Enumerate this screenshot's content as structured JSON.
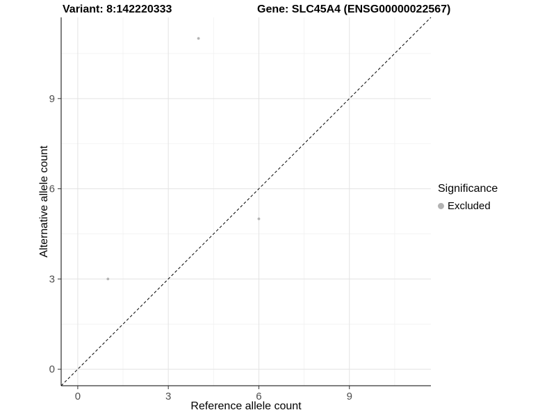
{
  "title": {
    "variant": "Variant: 8:142220333",
    "gene": "Gene: SLC45A4 (ENSG00000022567)"
  },
  "chart_data": {
    "type": "scatter",
    "title": "Variant: 8:142220333   Gene: SLC45A4 (ENSG00000022567)",
    "xlabel": "Reference allele count",
    "ylabel": "Alternative allele count",
    "xlim": [
      -0.55,
      11.7
    ],
    "ylim": [
      -0.55,
      11.7
    ],
    "x_ticks": [
      0,
      3,
      6,
      9
    ],
    "y_ticks": [
      0,
      3,
      6,
      9
    ],
    "x_minor_ticks": [
      1.5,
      4.5,
      7.5,
      10.5
    ],
    "y_minor_ticks": [
      1.5,
      4.5,
      7.5,
      10.5
    ],
    "grid": true,
    "series": [
      {
        "name": "Excluded",
        "color": "#b3b3b3",
        "points": [
          {
            "x": 1,
            "y": 3
          },
          {
            "x": 4,
            "y": 11
          },
          {
            "x": 6,
            "y": 5
          }
        ]
      }
    ],
    "identity_line": {
      "style": "dashed",
      "color": "#000000",
      "from": -0.55,
      "to": 11.7
    },
    "legend": {
      "position": "right",
      "title": "Significance",
      "entries": [
        {
          "label": "Excluded",
          "color": "#b3b3b3"
        }
      ]
    },
    "colors": {
      "grid_major": "#e3e3e3",
      "grid_minor": "#f1f1f1",
      "axis_line": "#000000",
      "tick_label": "#4d4d4d",
      "point": "#b3b3b3"
    }
  }
}
